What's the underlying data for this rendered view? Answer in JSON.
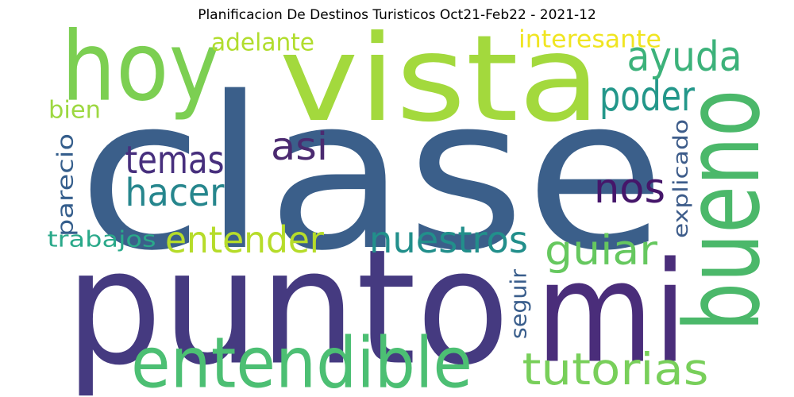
{
  "chart_data": {
    "type": "wordcloud",
    "title": "Planificacion De Destinos Turisticos Oct21-Feb22 - 2021-12",
    "words": [
      {
        "text": "clase",
        "color": "#3b5f8a"
      },
      {
        "text": "punto",
        "color": "#453a80"
      },
      {
        "text": "vista",
        "color": "#a3d93d"
      },
      {
        "text": "hoy",
        "color": "#7ccf52"
      },
      {
        "text": "mi",
        "color": "#4a2d7a"
      },
      {
        "text": "bueno",
        "color": "#4bb86a"
      },
      {
        "text": "entendible",
        "color": "#4cbf73"
      },
      {
        "text": "tutorias",
        "color": "#78cf5a"
      },
      {
        "text": "ayuda",
        "color": "#3cb27a"
      },
      {
        "text": "poder",
        "color": "#23978a"
      },
      {
        "text": "temas",
        "color": "#472f7d"
      },
      {
        "text": "hacer",
        "color": "#26868d"
      },
      {
        "text": "asi",
        "color": "#4b2a70"
      },
      {
        "text": "nos",
        "color": "#45166a"
      },
      {
        "text": "entender",
        "color": "#b6dc2a"
      },
      {
        "text": "nuestros",
        "color": "#228f8b"
      },
      {
        "text": "guiar",
        "color": "#66c85f"
      },
      {
        "text": "adelante",
        "color": "#b1dd2e"
      },
      {
        "text": "interesante",
        "color": "#f0e521"
      },
      {
        "text": "bien",
        "color": "#9dd841"
      },
      {
        "text": "parecio",
        "color": "#355e8c"
      },
      {
        "text": "trabajos",
        "color": "#2aa98a"
      },
      {
        "text": "explicado",
        "color": "#3d5c8a"
      },
      {
        "text": "seguir",
        "color": "#3a5e8c"
      }
    ]
  }
}
